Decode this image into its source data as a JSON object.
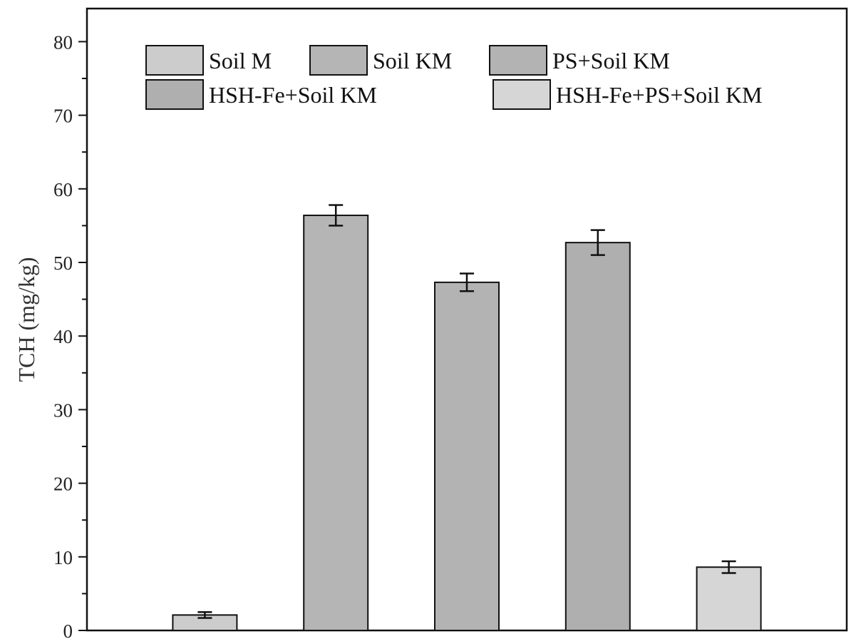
{
  "chart_data": {
    "type": "bar",
    "ylabel": "TCH (mg/kg)",
    "xlabel": "",
    "ylim": [
      0,
      85
    ],
    "yticks": [
      0,
      10,
      20,
      30,
      40,
      50,
      60,
      70,
      80
    ],
    "grid": false,
    "legend_position": "top",
    "series": [
      {
        "name": "Soil M",
        "value": 2.1,
        "error": 0.4,
        "color": "#cccccc"
      },
      {
        "name": "Soil KM",
        "value": 56.4,
        "error": 1.4,
        "color": "#b5b5b5"
      },
      {
        "name": "PS+Soil KM",
        "value": 47.3,
        "error": 1.2,
        "color": "#b3b3b3"
      },
      {
        "name": "HSH-Fe+Soil KM",
        "value": 52.7,
        "error": 1.7,
        "color": "#afafaf"
      },
      {
        "name": "HSH-Fe+PS+Soil KM",
        "value": 8.6,
        "error": 0.8,
        "color": "#d6d6d6"
      }
    ]
  }
}
